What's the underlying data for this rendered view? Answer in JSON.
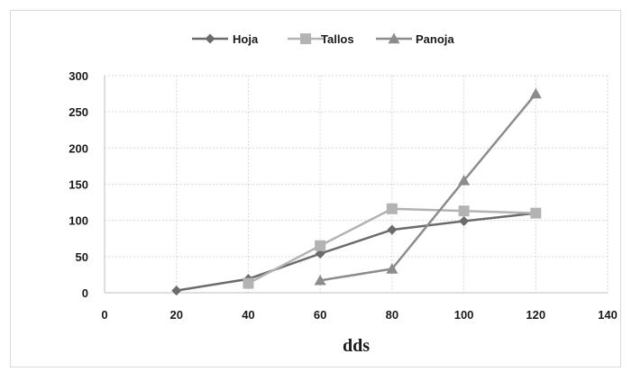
{
  "chart_data": {
    "type": "line",
    "xlabel": "dds",
    "ylabel": "",
    "xlim": [
      0,
      140
    ],
    "ylim": [
      0,
      300
    ],
    "xticks": [
      0,
      20,
      40,
      60,
      80,
      100,
      120,
      140
    ],
    "yticks": [
      0,
      50,
      100,
      150,
      200,
      250,
      300
    ],
    "x_tick_labels": [
      "0",
      "20",
      "40",
      "60",
      "80",
      "100",
      "120",
      "140"
    ],
    "y_tick_labels": [
      "0",
      "50",
      "100",
      "150",
      "200",
      "250",
      "300"
    ],
    "grid": true,
    "legend_position": "top-center",
    "series": [
      {
        "name": "Hoja",
        "marker": "diamond",
        "color": "#6b6b6b",
        "x": [
          20,
          40,
          60,
          80,
          100,
          120
        ],
        "y": [
          3,
          19,
          54,
          87,
          99,
          110
        ]
      },
      {
        "name": "Tallos",
        "marker": "square",
        "color": "#b3b3b3",
        "x": [
          40,
          60,
          80,
          100,
          120
        ],
        "y": [
          13,
          65,
          116,
          113,
          110
        ]
      },
      {
        "name": "Panoja",
        "marker": "triangle",
        "color": "#8c8c8c",
        "x": [
          60,
          80,
          100,
          120
        ],
        "y": [
          17,
          33,
          155,
          275
        ]
      }
    ]
  }
}
